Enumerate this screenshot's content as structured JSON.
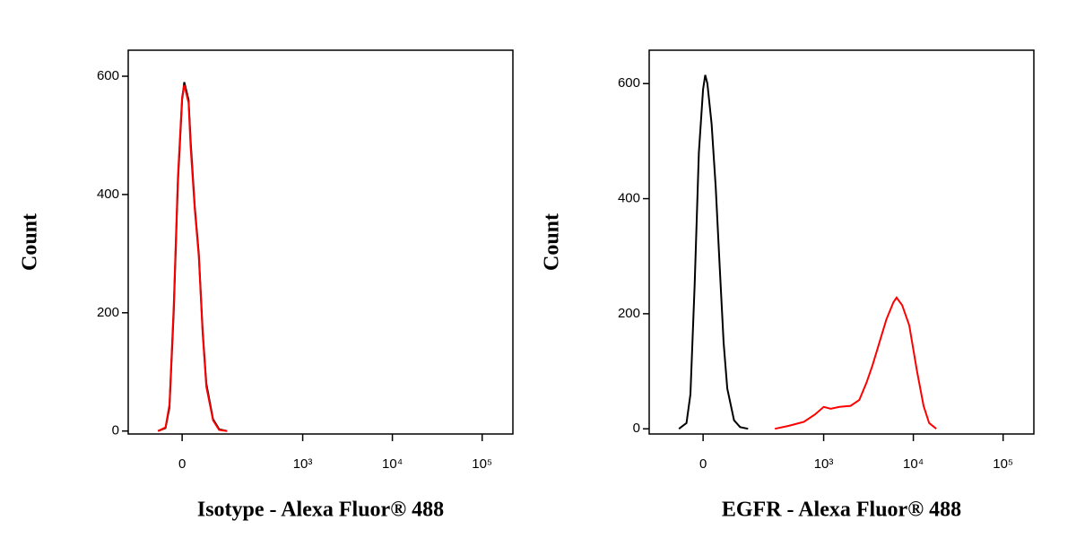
{
  "chart_data": [
    {
      "type": "line",
      "xscale": "biexponential",
      "y_label": "Count",
      "x_label": "Isotype - Alexa Fluor® 488",
      "xlim": [
        -170,
        220000
      ],
      "ylim": [
        -5,
        644
      ],
      "xticks": [
        0,
        {
          "value": 1000,
          "label": "10³"
        },
        {
          "value": 10000,
          "label": "10⁴"
        },
        {
          "value": 100000,
          "label": "10⁵"
        }
      ],
      "yticks": [
        0,
        200,
        400,
        600
      ],
      "series": [
        {
          "color": "#000000",
          "x": [
            -60,
            -40,
            -30,
            -20,
            -10,
            0,
            5,
            10,
            15,
            20,
            30,
            40,
            50,
            60,
            80,
            100,
            130
          ],
          "values": [
            0,
            5,
            40,
            200,
            420,
            560,
            590,
            575,
            560,
            490,
            380,
            300,
            170,
            80,
            20,
            3,
            0
          ]
        },
        {
          "color": "#ff0000",
          "x": [
            -60,
            -40,
            -30,
            -20,
            -10,
            0,
            5,
            10,
            15,
            20,
            30,
            40,
            50,
            60,
            80,
            100,
            130
          ],
          "values": [
            0,
            6,
            45,
            210,
            430,
            565,
            585,
            570,
            555,
            480,
            375,
            295,
            165,
            75,
            18,
            2,
            0
          ]
        }
      ]
    },
    {
      "type": "line",
      "xscale": "biexponential",
      "y_label": "Count",
      "x_label": "EGFR - Alexa Fluor® 488",
      "xlim": [
        -170,
        220000
      ],
      "ylim": [
        -9,
        658
      ],
      "xticks": [
        0,
        {
          "value": 1000,
          "label": "10³"
        },
        {
          "value": 10000,
          "label": "10⁴"
        },
        {
          "value": 100000,
          "label": "10⁵"
        }
      ],
      "yticks": [
        0,
        200,
        400,
        600
      ],
      "series": [
        {
          "color": "#000000",
          "x": [
            -60,
            -40,
            -30,
            -20,
            -10,
            0,
            5,
            10,
            20,
            30,
            40,
            50,
            60,
            80,
            100,
            130
          ],
          "values": [
            0,
            10,
            60,
            250,
            480,
            590,
            615,
            600,
            530,
            420,
            280,
            150,
            70,
            15,
            3,
            0
          ]
        },
        {
          "color": "#ff0000",
          "x": [
            280,
            400,
            600,
            800,
            1000,
            1200,
            1500,
            2000,
            2500,
            3000,
            3500,
            4000,
            5000,
            6000,
            6500,
            7500,
            9000,
            11000,
            13000,
            15000,
            18000
          ],
          "values": [
            0,
            5,
            12,
            25,
            38,
            35,
            38,
            40,
            50,
            80,
            110,
            140,
            190,
            220,
            228,
            215,
            180,
            100,
            40,
            10,
            0
          ]
        }
      ]
    }
  ]
}
